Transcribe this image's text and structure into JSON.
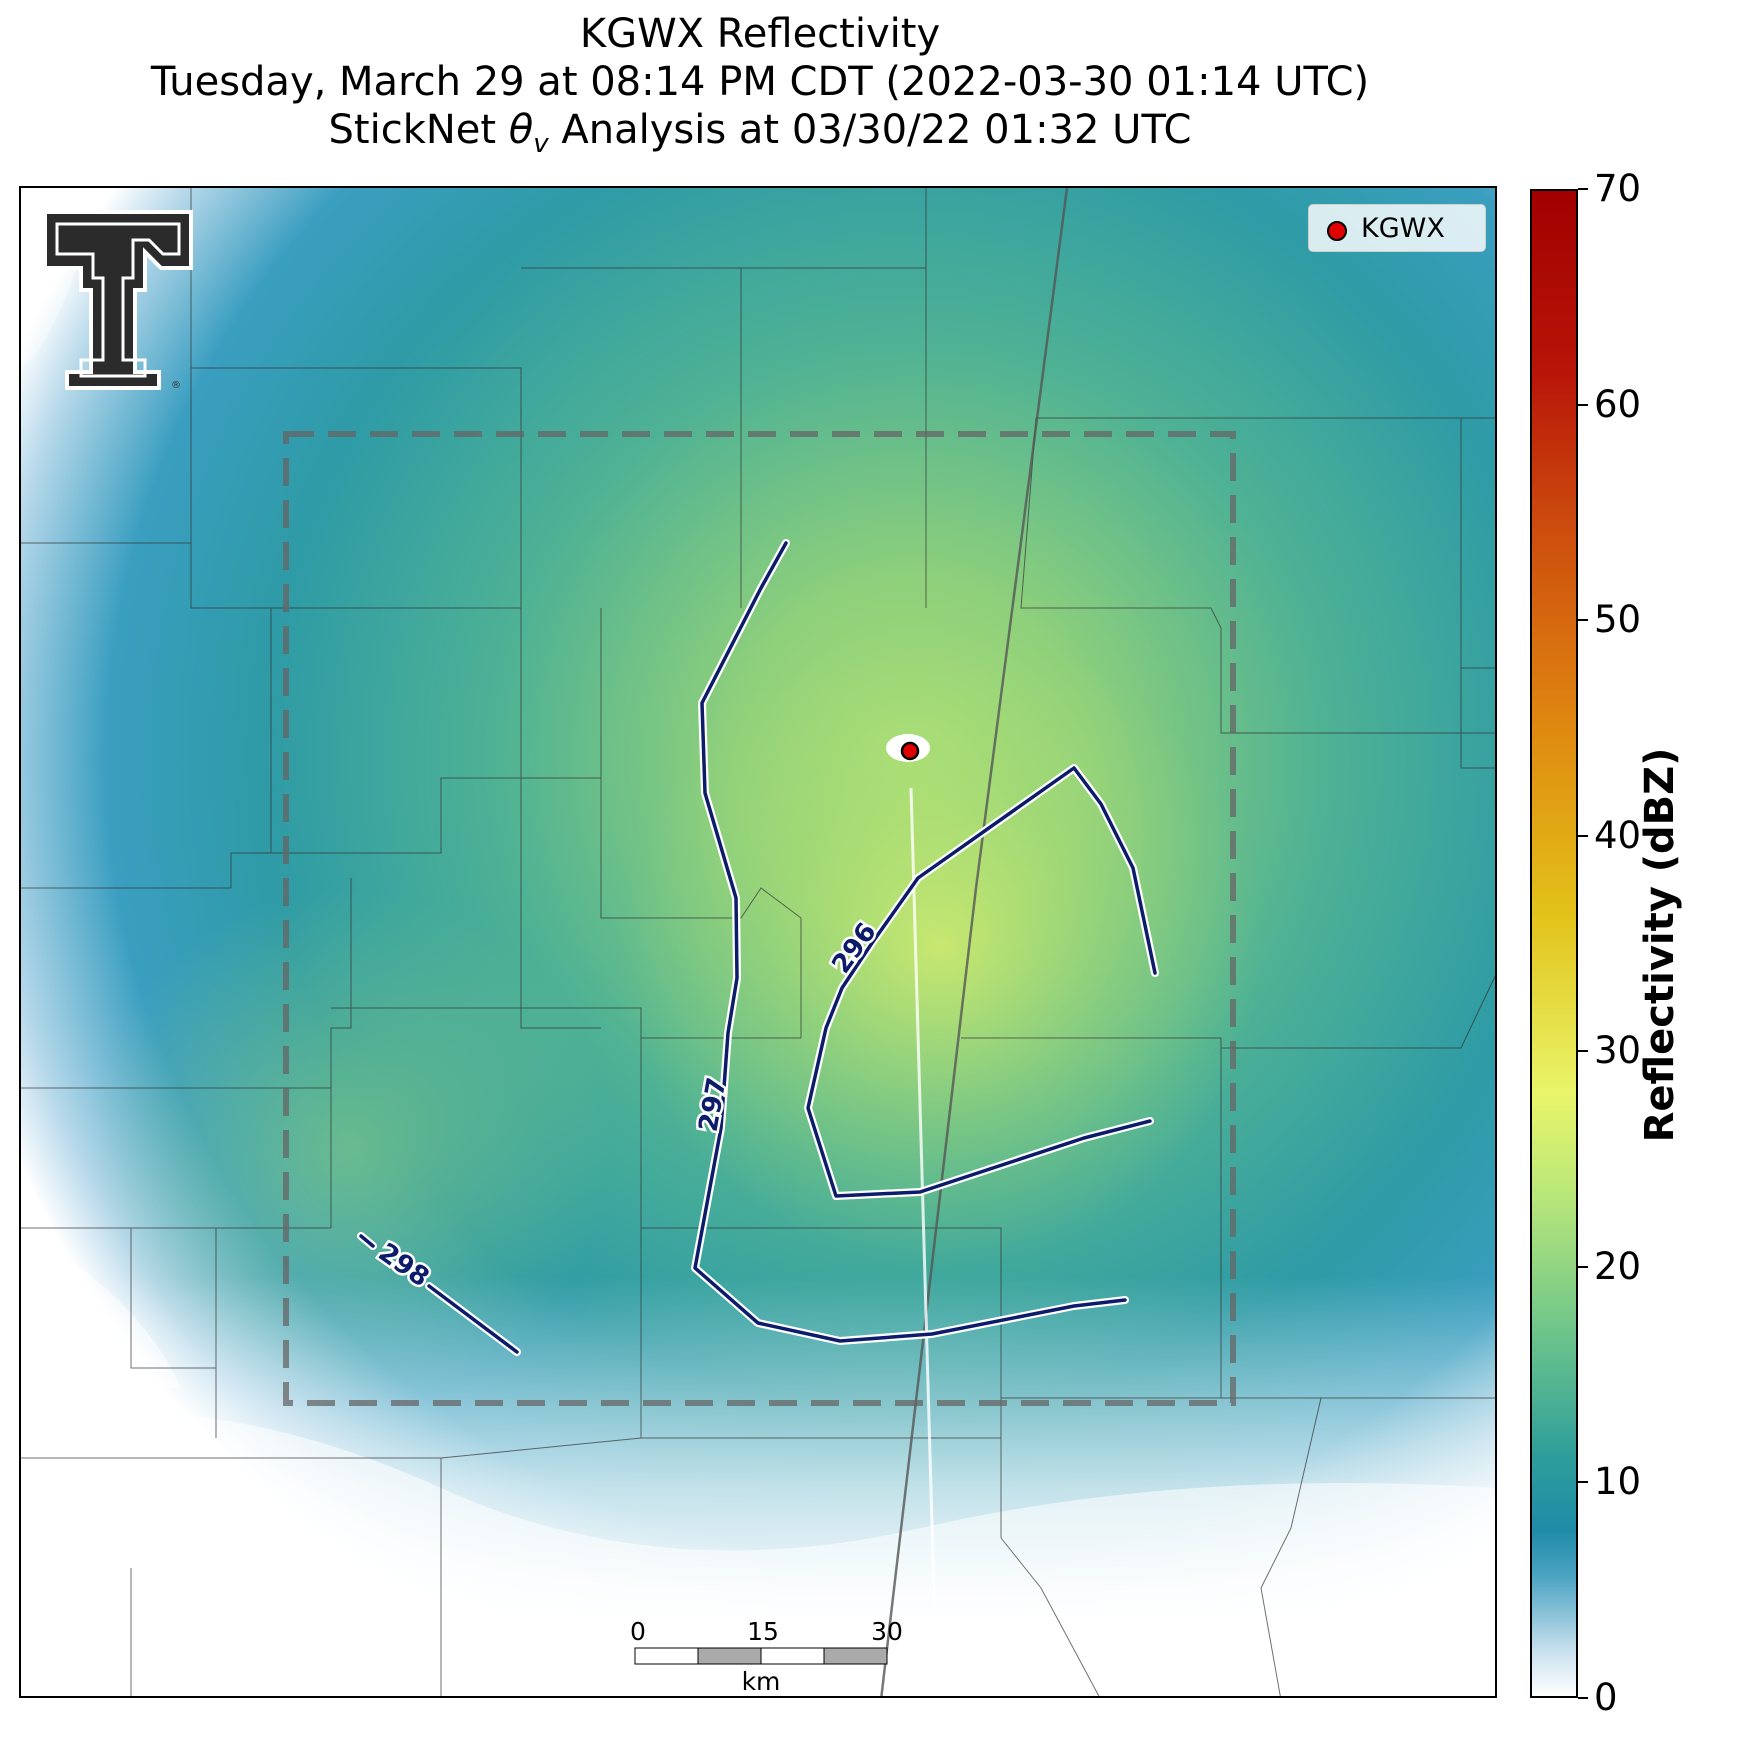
{
  "title": {
    "line1": "KGWX Reflectivity",
    "line2": "Tuesday, March 29 at 08:14 PM CDT (2022-03-30 01:14 UTC)",
    "line3_prefix": "StickNet ",
    "line3_symbol": "θ",
    "line3_subscript": "v",
    "line3_suffix": " Analysis at 03/30/22 01:32 UTC"
  },
  "legend": {
    "entry": "KGWX",
    "marker_color": "#e00000"
  },
  "colorbar": {
    "label": "Reflectivity (dBZ)",
    "ticks": [
      "0",
      "10",
      "20",
      "30",
      "40",
      "50",
      "60",
      "70"
    ],
    "range": [
      0,
      70
    ]
  },
  "contours": {
    "color": "#0d1b6b",
    "labels": [
      "296",
      "297",
      "298"
    ]
  },
  "scale_bar": {
    "labels": [
      "0",
      "15",
      "30"
    ],
    "unit": "km"
  },
  "radar_site": {
    "name": "KGWX",
    "color": "#e00000"
  },
  "logo": {
    "text": "T",
    "name": "Texas Tech"
  }
}
